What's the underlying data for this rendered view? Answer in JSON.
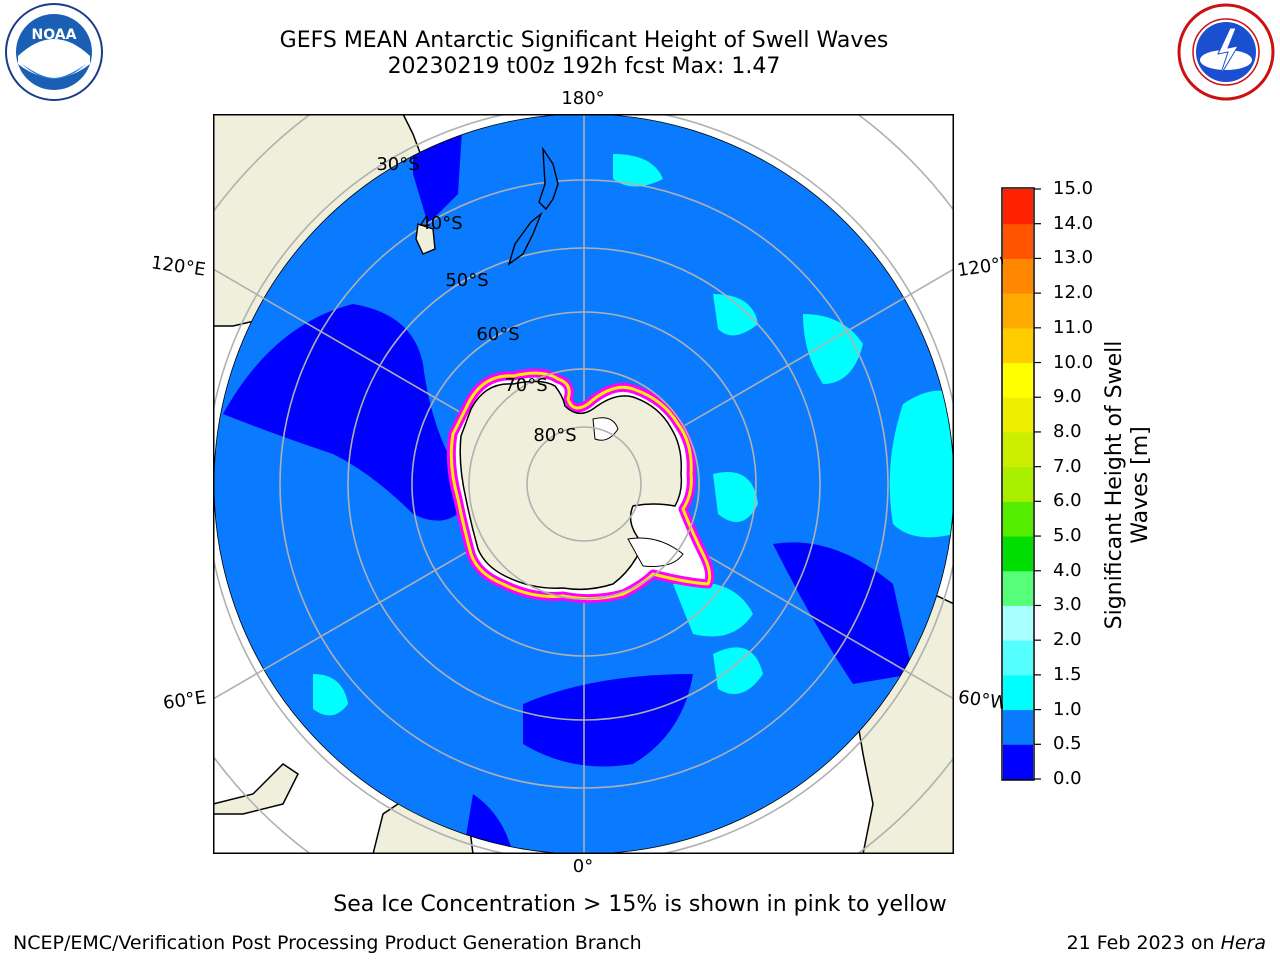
{
  "title": {
    "line1": "GEFS MEAN Antarctic Significant Height of Swell Waves",
    "line2": "20230219 t00z 192h fcst   Max: 1.47"
  },
  "logos": {
    "left": "NOAA",
    "right": "NATIONAL WEATHER SERVICE"
  },
  "map": {
    "projection": "south-polar-stereographic",
    "lon_labels": {
      "top": "180°",
      "bottom": "0°",
      "upper_left": "120°E",
      "upper_right": "120°W",
      "lower_left": "60°E",
      "lower_right": "60°W"
    },
    "lat_labels": [
      "30°S",
      "40°S",
      "50°S",
      "60°S",
      "70°S",
      "80°S"
    ],
    "colors": {
      "ocean": "#0a7bff",
      "land": "#efefdc",
      "swell_low": "#0000ff",
      "swell_mid": "#00ffff",
      "ice_edge": "#ff00ff",
      "ice": "#ffffff"
    }
  },
  "colorbar": {
    "label_line1": "Significant Height of Swell",
    "label_line2": "Waves [m]",
    "ticks": [
      "0.0",
      "0.5",
      "1.0",
      "1.5",
      "2.0",
      "3.0",
      "4.0",
      "5.0",
      "6.0",
      "7.0",
      "8.0",
      "9.0",
      "10.0",
      "11.0",
      "12.0",
      "13.0",
      "14.0",
      "15.0"
    ],
    "colors": [
      "#0000ff",
      "#0a7bff",
      "#00ffff",
      "#55ffff",
      "#aaffff",
      "#55ff77",
      "#00dd00",
      "#55ee00",
      "#aaee00",
      "#ccee00",
      "#eeee00",
      "#ffff00",
      "#ffcc00",
      "#ffaa00",
      "#ff8800",
      "#ff5500",
      "#ff2200"
    ]
  },
  "caption": "Sea Ice Concentration > 15% is shown in pink to yellow",
  "footer": {
    "left": "NCEP/EMC/Verification Post Processing Product Generation Branch",
    "right_prefix": "21 Feb 2023 on ",
    "right_italic": "Hera"
  }
}
